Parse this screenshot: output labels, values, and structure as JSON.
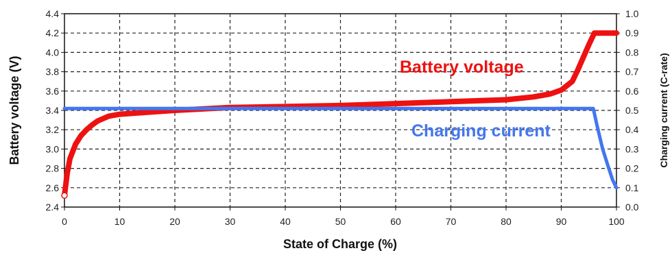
{
  "chart_data": {
    "type": "line",
    "xlabel": "State of Charge (%)",
    "ylabel": "Battery voltage (V)",
    "y2label": "Charging current (C-rate)",
    "xlim": [
      0,
      100
    ],
    "ylim": [
      2.4,
      4.4
    ],
    "y2lim": [
      0.0,
      1.0
    ],
    "x_ticks": [
      "0",
      "10",
      "20",
      "30",
      "40",
      "50",
      "60",
      "70",
      "80",
      "90",
      "100"
    ],
    "y_ticks": [
      "2.4",
      "2.6",
      "2.8",
      "3.0",
      "3.2",
      "3.4",
      "3.6",
      "3.8",
      "4.0",
      "4.2",
      "4.4"
    ],
    "y2_ticks": [
      "0.0",
      "0.1",
      "0.2",
      "0.3",
      "0.4",
      "0.5",
      "0.6",
      "0.7",
      "0.8",
      "0.9",
      "1.0"
    ],
    "grid": true,
    "series": [
      {
        "name": "Battery voltage",
        "axis": "left",
        "color": "#ee1111",
        "x": [
          0,
          0.5,
          1,
          2,
          3,
          4,
          5,
          6,
          8,
          10,
          15,
          20,
          30,
          40,
          50,
          60,
          70,
          80,
          85,
          88,
          90,
          92,
          93,
          94,
          95,
          96,
          100
        ],
        "y": [
          2.52,
          2.75,
          2.9,
          3.05,
          3.14,
          3.2,
          3.25,
          3.29,
          3.34,
          3.36,
          3.38,
          3.4,
          3.43,
          3.44,
          3.45,
          3.47,
          3.49,
          3.51,
          3.54,
          3.57,
          3.61,
          3.7,
          3.82,
          3.95,
          4.08,
          4.2,
          4.2
        ]
      },
      {
        "name": "Charging current",
        "axis": "right",
        "color": "#4477ee",
        "x": [
          0,
          95.8,
          96.5,
          97.5,
          98.5,
          99.3,
          100
        ],
        "y": [
          0.51,
          0.51,
          0.42,
          0.3,
          0.21,
          0.14,
          0.1
        ]
      }
    ]
  }
}
